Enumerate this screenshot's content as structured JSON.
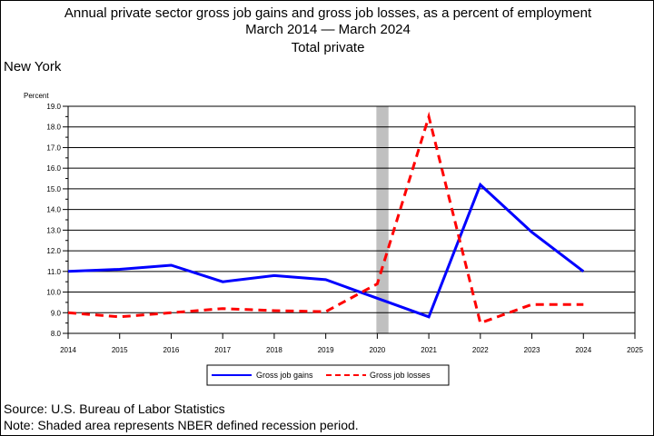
{
  "chart_data": {
    "type": "line",
    "title": "Annual private sector gross job gains and gross job losses, as a percent of employment",
    "subtitle": "March 2014 — March 2024",
    "series_title": "Total private",
    "region": "New York",
    "ylabel": "Percent",
    "ylim": [
      8.0,
      19.0
    ],
    "yticks": [
      "8.0",
      "9.0",
      "10.0",
      "11.0",
      "12.0",
      "13.0",
      "14.0",
      "15.0",
      "16.0",
      "17.0",
      "18.0",
      "19.0"
    ],
    "xlim": [
      2014,
      2025
    ],
    "xticks": [
      "2014",
      "2015",
      "2016",
      "2017",
      "2018",
      "2019",
      "2020",
      "2021",
      "2022",
      "2023",
      "2024",
      "2025"
    ],
    "grid": true,
    "recession": [
      2020,
      2020.2
    ],
    "legend_position": "bottom",
    "series": [
      {
        "name": "Gross job gains",
        "color": "#0000ff",
        "style": "solid",
        "x": [
          2014,
          2015,
          2016,
          2017,
          2018,
          2019,
          2021,
          2022,
          2023,
          2024
        ],
        "values": [
          11.0,
          11.1,
          11.3,
          10.5,
          10.8,
          10.6,
          8.8,
          15.2,
          12.9,
          11.0
        ]
      },
      {
        "name": "Gross job losses",
        "color": "#ff0000",
        "style": "dashed",
        "x": [
          2014,
          2015,
          2016,
          2017,
          2018,
          2019,
          2020,
          2021,
          2022,
          2023,
          2024
        ],
        "values": [
          9.0,
          8.8,
          9.0,
          9.2,
          9.1,
          9.05,
          10.4,
          18.5,
          8.5,
          9.4,
          9.4
        ]
      }
    ]
  },
  "footer": {
    "source": "Source: U.S. Bureau of Labor Statistics",
    "note": "Note: Shaded area represents NBER defined recession period."
  },
  "colors": {
    "recession_shade": "#c0c0c0",
    "grid": "#000000"
  }
}
